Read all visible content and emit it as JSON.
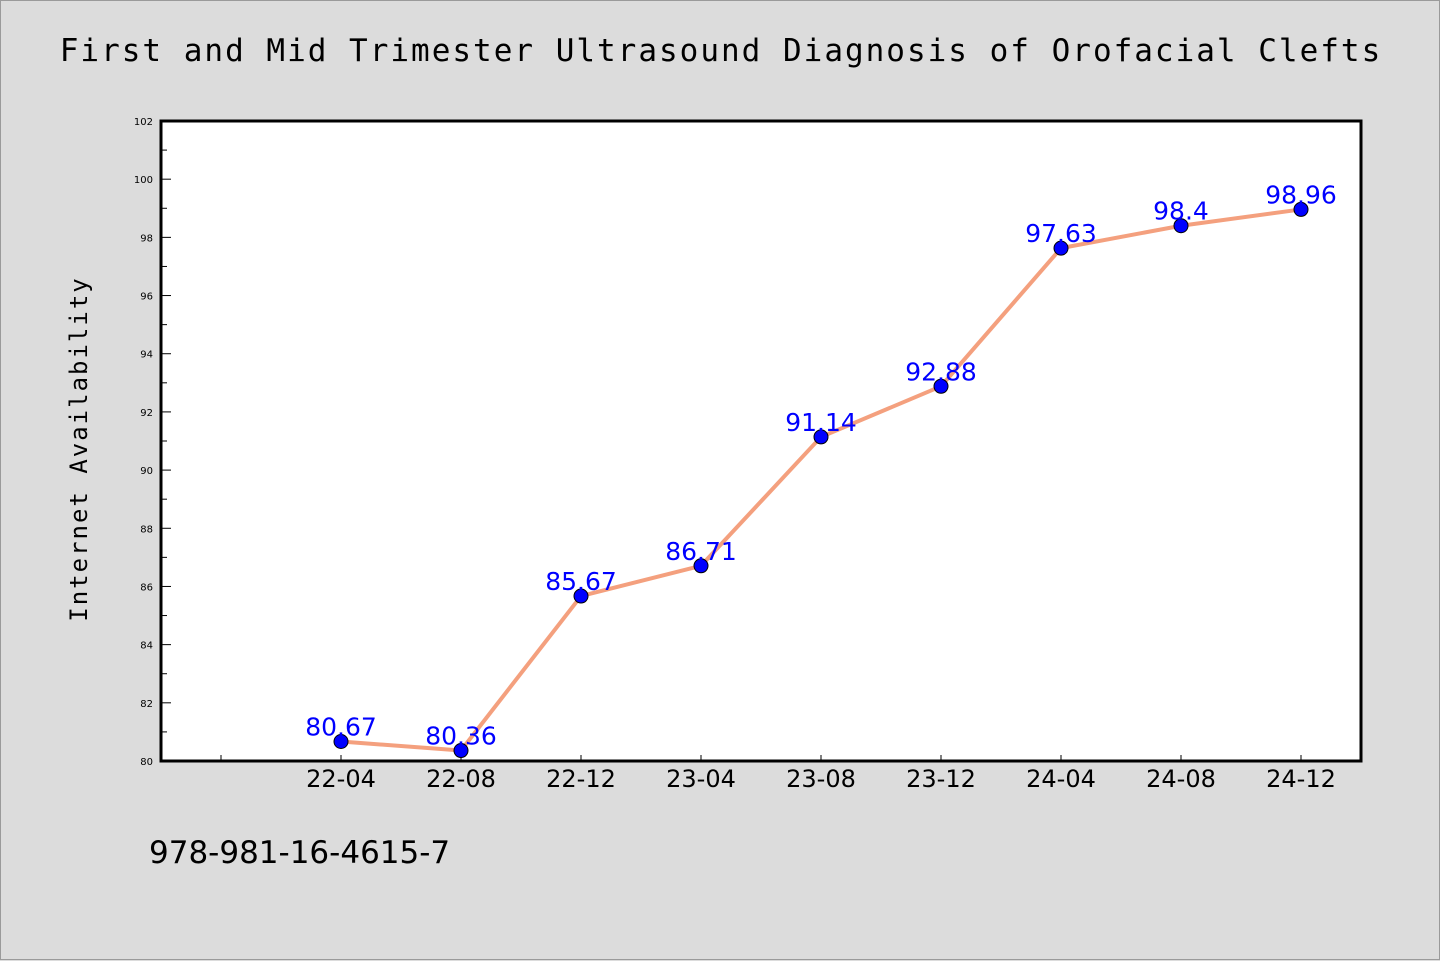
{
  "chart_data": {
    "type": "line",
    "title": "First and Mid Trimester Ultrasound Diagnosis of Orofacial Clefts",
    "xlabel": "",
    "ylabel": "Internet Availability",
    "categories": [
      "22-04",
      "22-08",
      "22-12",
      "23-04",
      "23-08",
      "23-12",
      "24-04",
      "24-08",
      "24-12"
    ],
    "series": [
      {
        "values": [
          80.67,
          80.36,
          85.67,
          86.71,
          91.14,
          92.88,
          97.63,
          98.4,
          98.96
        ],
        "labels": [
          "80.67",
          "80.36",
          "85.67",
          "86.71",
          "91.14",
          "92.88",
          "97.63",
          "98.4",
          "98.96"
        ]
      }
    ],
    "ylim": [
      80,
      102
    ],
    "yticks": [
      "80",
      "82",
      "84",
      "86",
      "88",
      "90",
      "92",
      "94",
      "96",
      "98",
      "100",
      "102"
    ],
    "grid": false,
    "line_color": "#f4a07e",
    "marker_color": "#0000ff",
    "label_color": "#0000ff"
  },
  "footer": {
    "text": "978-981-16-4615-7"
  }
}
